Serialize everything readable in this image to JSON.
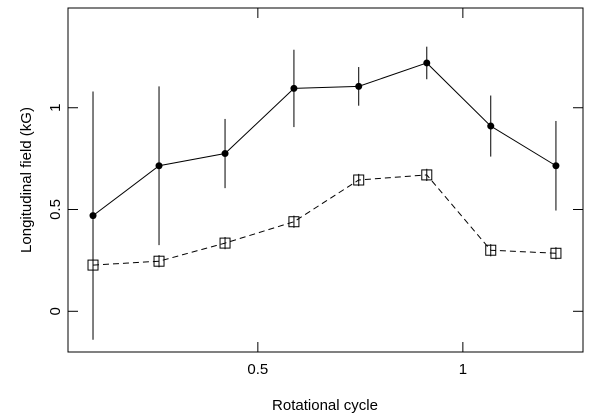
{
  "chart_data": {
    "type": "line",
    "x_label": "Rotational cycle",
    "y_label": "Longitudinal field (kG)",
    "xlim": [
      0.037,
      1.293
    ],
    "ylim": [
      -0.2,
      1.49
    ],
    "xticks": [
      0.5,
      1
    ],
    "yticks": [
      0,
      0.5,
      1
    ],
    "x": [
      0.098,
      0.259,
      0.42,
      0.588,
      0.746,
      0.912,
      1.068,
      1.227
    ],
    "series": [
      {
        "color": "#000000",
        "marker": "circle",
        "dash": false,
        "values": [
          0.47,
          0.715,
          0.775,
          1.095,
          1.105,
          1.22,
          0.91,
          0.715
        ],
        "errors": [
          0.61,
          0.39,
          0.17,
          0.19,
          0.095,
          0.08,
          0.15,
          0.22
        ]
      },
      {
        "color": "#000000",
        "marker": "square",
        "dash": true,
        "values": [
          0.227,
          0.246,
          0.335,
          0.44,
          0.645,
          0.67,
          0.3,
          0.285
        ],
        "errors": [
          0.07,
          0.03,
          0.03,
          0.03,
          0.03,
          0.03,
          0.03,
          0.03
        ]
      }
    ]
  }
}
